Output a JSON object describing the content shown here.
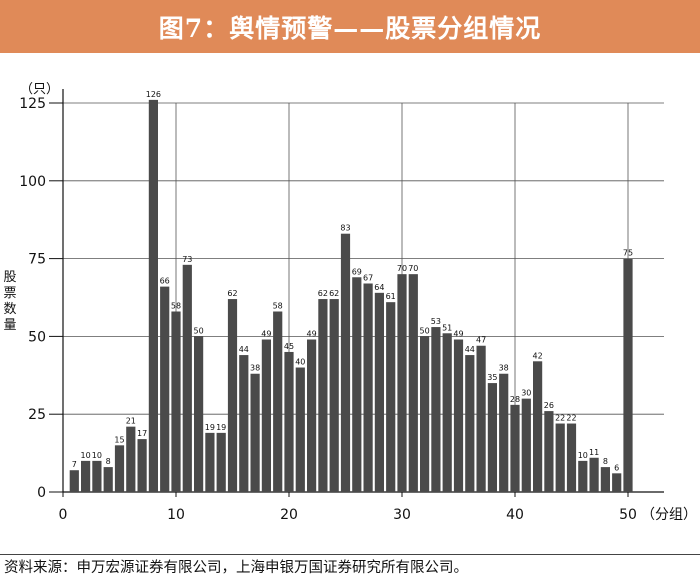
{
  "banner": {
    "title": "图7：舆情预警——股票分组情况"
  },
  "footer": {
    "source": "资料来源：申万宏源证券有限公司，上海申银万国证券研究所有限公司。"
  },
  "chart_data": {
    "type": "bar",
    "title": "",
    "ylabel": "股票数量",
    "y_unit": "（只）",
    "x_unit": "（分组）",
    "ylim": [
      0,
      125
    ],
    "yticks": [
      0,
      25,
      50,
      75,
      100,
      125
    ],
    "xlim": [
      0,
      50
    ],
    "xticks": [
      0,
      10,
      20,
      30,
      40,
      50
    ],
    "grid": true,
    "bar_color": "#4a4a4a",
    "categories": [
      1,
      2,
      3,
      4,
      5,
      6,
      7,
      8,
      9,
      10,
      11,
      12,
      13,
      14,
      15,
      16,
      17,
      18,
      19,
      20,
      21,
      22,
      23,
      24,
      25,
      26,
      27,
      28,
      29,
      30,
      31,
      32,
      33,
      34,
      35,
      36,
      37,
      38,
      39,
      40,
      41,
      42,
      43,
      44,
      45,
      46,
      47,
      48,
      49,
      50
    ],
    "values": [
      7,
      10,
      10,
      8,
      15,
      21,
      17,
      126,
      66,
      58,
      73,
      50,
      19,
      19,
      62,
      44,
      38,
      49,
      58,
      45,
      40,
      49,
      62,
      62,
      83,
      69,
      67,
      64,
      61,
      70,
      70,
      50,
      53,
      51,
      49,
      44,
      47,
      35,
      38,
      28,
      30,
      42,
      26,
      22,
      22,
      10,
      11,
      8,
      6,
      75
    ]
  }
}
